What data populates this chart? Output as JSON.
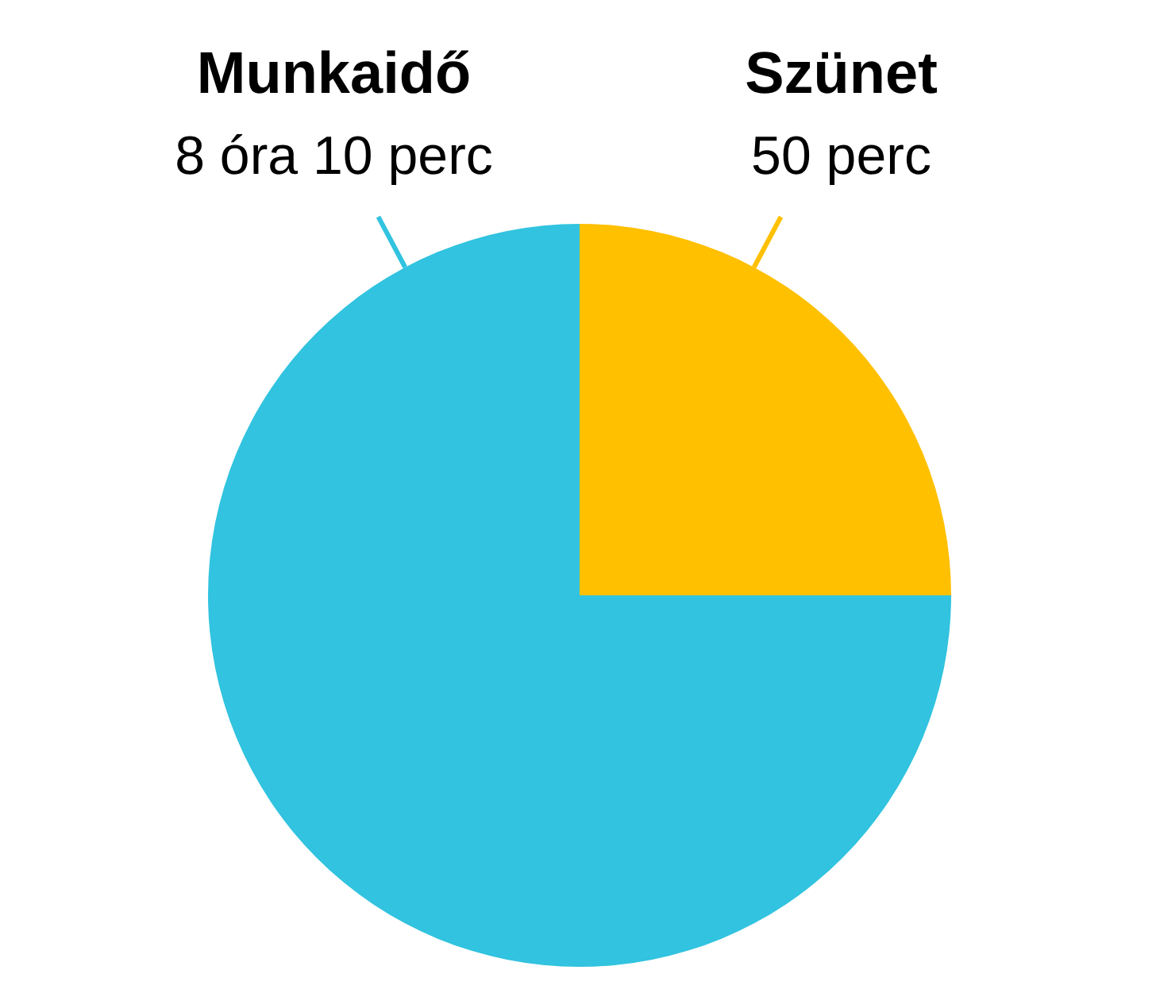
{
  "chart_data": {
    "type": "pie",
    "categories": [
      "Szünet",
      "Munkaidő"
    ],
    "values": [
      25,
      75
    ],
    "colors": [
      "#ffc000",
      "#31c3df"
    ],
    "annotations": [
      "50 perc",
      "8 óra 10 perc"
    ],
    "legend": false
  }
}
